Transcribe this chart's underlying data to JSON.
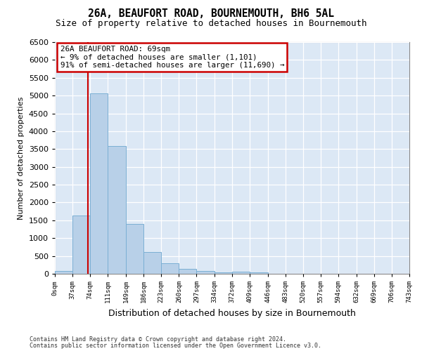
{
  "title": "26A, BEAUFORT ROAD, BOURNEMOUTH, BH6 5AL",
  "subtitle": "Size of property relative to detached houses in Bournemouth",
  "xlabel": "Distribution of detached houses by size in Bournemouth",
  "ylabel": "Number of detached properties",
  "bar_color": "#b8d0e8",
  "bar_edge_color": "#7bafd4",
  "background_color": "#dce8f5",
  "grid_color": "#ffffff",
  "annotation_text": "26A BEAUFORT ROAD: 69sqm\n← 9% of detached houses are smaller (1,101)\n91% of semi-detached houses are larger (11,690) →",
  "vline_x": 69,
  "vline_color": "#cc0000",
  "ylim": [
    0,
    6500
  ],
  "yticks": [
    0,
    500,
    1000,
    1500,
    2000,
    2500,
    3000,
    3500,
    4000,
    4500,
    5000,
    5500,
    6000,
    6500
  ],
  "bin_edges": [
    0,
    37,
    74,
    111,
    149,
    186,
    223,
    260,
    297,
    334,
    372,
    409,
    446,
    483,
    520,
    557,
    594,
    632,
    669,
    706,
    743
  ],
  "bin_heights": [
    70,
    1640,
    5070,
    3580,
    1400,
    610,
    300,
    145,
    80,
    45,
    60,
    45,
    0,
    0,
    0,
    0,
    0,
    0,
    0,
    0
  ],
  "tick_labels": [
    "0sqm",
    "37sqm",
    "74sqm",
    "111sqm",
    "149sqm",
    "186sqm",
    "223sqm",
    "260sqm",
    "297sqm",
    "334sqm",
    "372sqm",
    "409sqm",
    "446sqm",
    "483sqm",
    "520sqm",
    "557sqm",
    "594sqm",
    "632sqm",
    "669sqm",
    "706sqm",
    "743sqm"
  ],
  "footnote1": "Contains HM Land Registry data © Crown copyright and database right 2024.",
  "footnote2": "Contains public sector information licensed under the Open Government Licence v3.0.",
  "title_fontsize": 10.5,
  "subtitle_fontsize": 9,
  "annotation_box_color": "#ffffff",
  "annotation_box_edgecolor": "#cc0000",
  "fig_bg": "#ffffff"
}
